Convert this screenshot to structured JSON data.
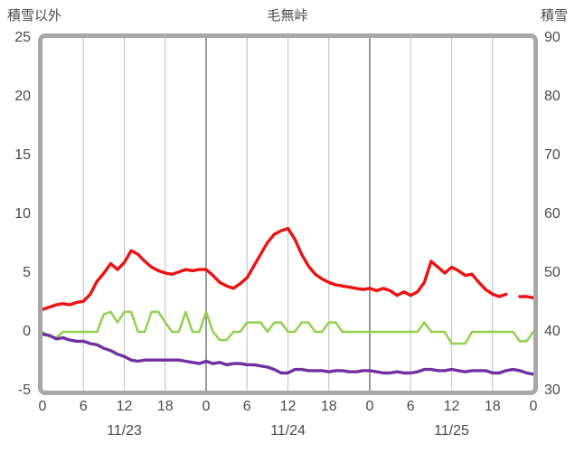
{
  "chart_data": {
    "type": "line",
    "title": "毛無峠",
    "left_axis": {
      "title": "積雪以外",
      "range": [
        -5,
        25
      ],
      "ticks": [
        "25",
        "20",
        "15",
        "10",
        "5",
        "0",
        "-5"
      ]
    },
    "right_axis": {
      "title": "積雪",
      "range": [
        30,
        90
      ],
      "ticks": [
        "90",
        "80",
        "70",
        "60",
        "50",
        "40",
        "30"
      ]
    },
    "x_axis": {
      "hours_max": 72,
      "hour_ticks": [
        "0",
        "6",
        "12",
        "18",
        "0",
        "6",
        "12",
        "18",
        "0",
        "6",
        "12",
        "18",
        "0"
      ],
      "date_labels": [
        "11/23",
        "11/24",
        "11/25"
      ],
      "minor_gridline_hours": [
        6,
        12,
        18,
        30,
        36,
        42,
        54,
        60,
        66
      ],
      "major_gridline_hours": [
        24,
        48
      ]
    },
    "style": {
      "frame_color": "#a8a8a8",
      "minor_grid_color": "#c8c8c8",
      "major_grid_color": "#9a9a9a",
      "text_color": "#4a4a4a"
    },
    "series": [
      {
        "name": "green",
        "color": "#92d050",
        "width": 2.5,
        "values": [
          0,
          -0.4,
          -0.5,
          0,
          0,
          0,
          0,
          0,
          0,
          1.5,
          1.7,
          0.8,
          1.7,
          1.7,
          0,
          0,
          1.7,
          1.7,
          0.8,
          0,
          0,
          1.7,
          0,
          0,
          1.7,
          0,
          -0.7,
          -0.7,
          0,
          0,
          0.8,
          0.8,
          0.8,
          0,
          0.8,
          0.8,
          0,
          0,
          0.8,
          0.8,
          0,
          0,
          0.8,
          0.8,
          0,
          0,
          0,
          0,
          0,
          0,
          0,
          0,
          0,
          0,
          0,
          0,
          0.8,
          0,
          0,
          0,
          -1.0,
          -1.0,
          -1.0,
          0,
          0,
          0,
          0,
          0,
          0,
          0,
          -0.8,
          -0.8,
          0
        ]
      },
      {
        "name": "purple",
        "color": "#7030a0",
        "width": 3.4,
        "values": [
          -0.2,
          -0.3,
          -0.6,
          -0.5,
          -0.7,
          -0.8,
          -0.8,
          -1.0,
          -1.1,
          -1.4,
          -1.6,
          -1.9,
          -2.1,
          -2.4,
          -2.5,
          -2.4,
          -2.4,
          -2.4,
          -2.4,
          -2.4,
          -2.4,
          -2.5,
          -2.6,
          -2.7,
          -2.5,
          -2.7,
          -2.6,
          -2.8,
          -2.7,
          -2.7,
          -2.8,
          -2.8,
          -2.9,
          -3.0,
          -3.2,
          -3.5,
          -3.5,
          -3.2,
          -3.2,
          -3.3,
          -3.3,
          -3.3,
          -3.4,
          -3.3,
          -3.3,
          -3.4,
          -3.4,
          -3.3,
          -3.3,
          -3.4,
          -3.5,
          -3.5,
          -3.4,
          -3.5,
          -3.5,
          -3.4,
          -3.2,
          -3.2,
          -3.3,
          -3.3,
          -3.2,
          -3.3,
          -3.4,
          -3.3,
          -3.3,
          -3.3,
          -3.5,
          -3.5,
          -3.3,
          -3.2,
          -3.3,
          -3.5,
          -3.6
        ]
      },
      {
        "name": "red",
        "color": "#ee1111",
        "width": 3.4,
        "values": [
          1.9,
          2.1,
          2.3,
          2.4,
          2.3,
          2.5,
          2.6,
          3.2,
          4.3,
          5.0,
          5.8,
          5.3,
          5.9,
          6.9,
          6.6,
          6.0,
          5.5,
          5.2,
          5.0,
          4.9,
          5.1,
          5.3,
          5.2,
          5.3,
          5.3,
          4.8,
          4.2,
          3.9,
          3.7,
          4.1,
          4.6,
          5.6,
          6.6,
          7.6,
          8.3,
          8.6,
          8.8,
          7.9,
          6.6,
          5.6,
          4.9,
          4.5,
          4.2,
          4.0,
          3.9,
          3.8,
          3.7,
          3.6,
          3.7,
          3.5,
          3.7,
          3.5,
          3.1,
          3.4,
          3.1,
          3.4,
          4.2,
          6.0,
          5.5,
          5.0,
          5.5,
          5.2,
          4.8,
          4.9,
          4.2,
          3.6,
          3.2,
          3.0,
          3.2,
          null,
          3.0,
          3.0,
          2.9
        ]
      }
    ]
  }
}
